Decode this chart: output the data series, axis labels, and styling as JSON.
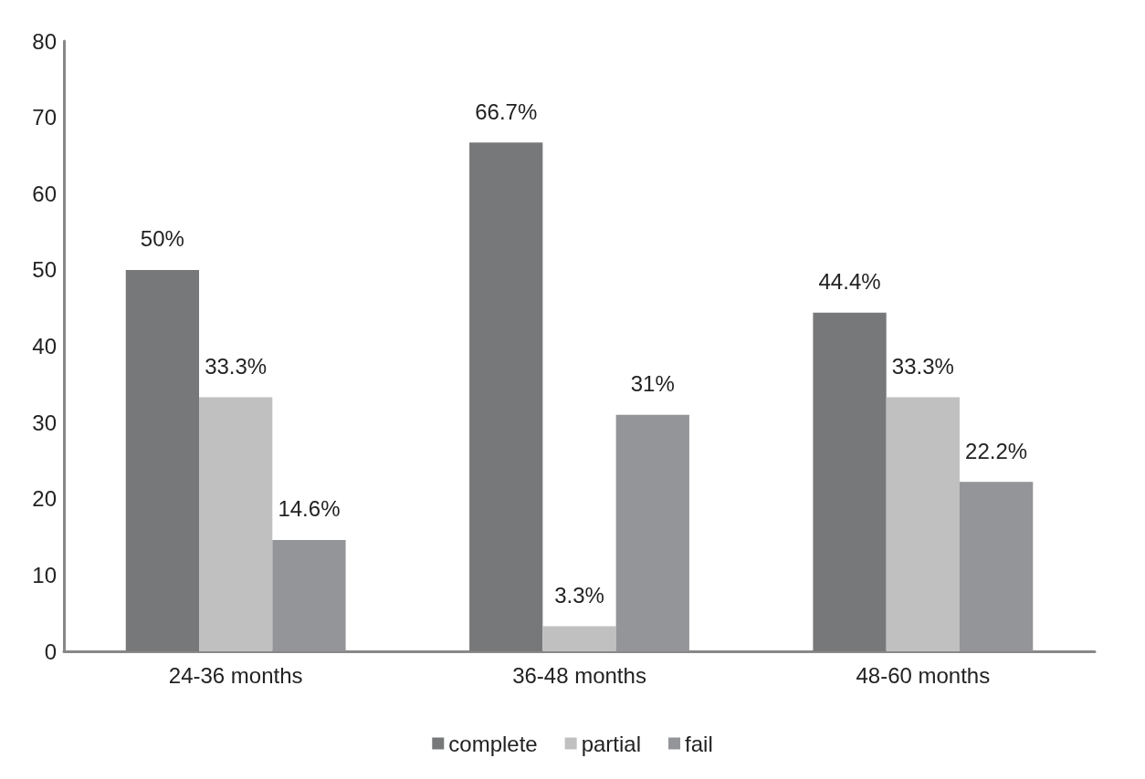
{
  "chart_data": {
    "type": "bar",
    "categories": [
      "24-36 months",
      "36-48 months",
      "48-60 months"
    ],
    "series": [
      {
        "name": "complete",
        "color": "#77787a",
        "values": [
          50,
          66.7,
          44.4
        ],
        "value_labels": [
          "50%",
          "66.7%",
          "44.4%"
        ]
      },
      {
        "name": "partial",
        "color": "#c0c0c0",
        "values": [
          33.3,
          3.3,
          33.3
        ],
        "value_labels": [
          "33.3%",
          "3.3%",
          "33.3%"
        ]
      },
      {
        "name": "fail",
        "color": "#939598",
        "values": [
          14.6,
          31,
          22.2
        ],
        "value_labels": [
          "14.6%",
          "31%",
          "22.2%"
        ]
      }
    ],
    "ylim": [
      0,
      80
    ],
    "yticks": [
      0,
      10,
      20,
      30,
      40,
      50,
      60,
      70,
      80
    ],
    "grid": false,
    "legend": "bottom"
  }
}
